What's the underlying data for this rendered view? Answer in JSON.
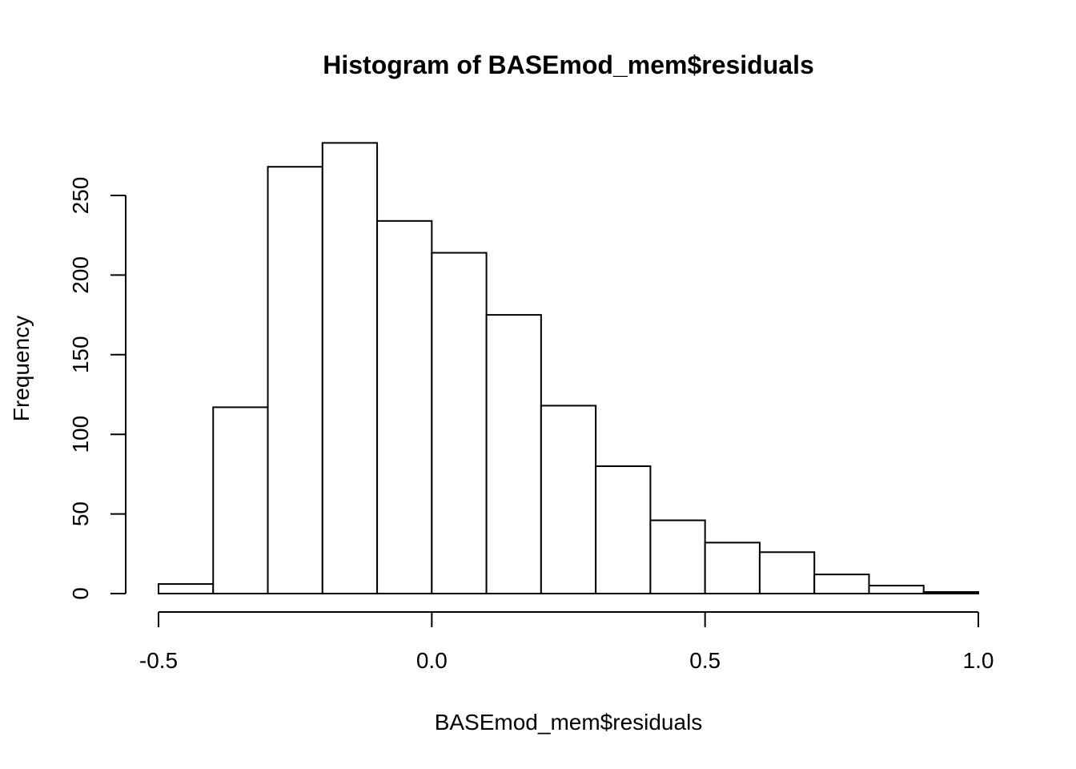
{
  "chart_data": {
    "type": "bar",
    "title": "Histogram of BASEmod_mem$residuals",
    "xlabel": "BASEmod_mem$residuals",
    "ylabel": "Frequency",
    "bin_edges": [
      -0.5,
      -0.4,
      -0.3,
      -0.2,
      -0.1,
      0.0,
      0.1,
      0.2,
      0.3,
      0.4,
      0.5,
      0.6,
      0.7,
      0.8,
      0.9,
      1.0
    ],
    "values": [
      6,
      117,
      268,
      283,
      234,
      214,
      175,
      118,
      80,
      46,
      32,
      26,
      12,
      5,
      1
    ],
    "xlim": [
      -0.5,
      1.0
    ],
    "ylim": [
      0,
      283
    ],
    "x_ticks": [
      -0.5,
      0.0,
      0.5,
      1.0
    ],
    "x_tick_labels": [
      "-0.5",
      "0.0",
      "0.5",
      "1.0"
    ],
    "y_ticks": [
      0,
      50,
      100,
      150,
      200,
      250
    ],
    "y_tick_labels": [
      "0",
      "50",
      "100",
      "150",
      "200",
      "250"
    ],
    "grid": false,
    "legend": "none"
  }
}
